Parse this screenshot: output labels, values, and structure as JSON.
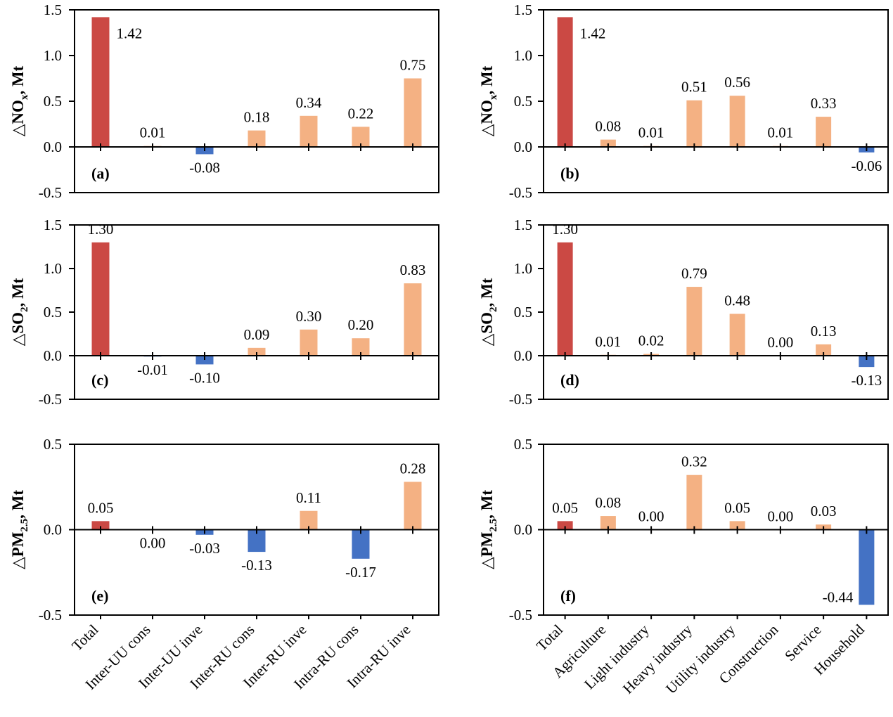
{
  "colors": {
    "total_bar": "#CB4944",
    "positive_bar": "#F4B183",
    "negative_bar": "#4472C4",
    "axis": "#000000",
    "background": "#FFFFFF"
  },
  "chart_data": [
    {
      "type": "bar",
      "panel": "(a)",
      "panel_id": "a",
      "ylabel": "△NOx, Mt",
      "ylabel_rich": [
        {
          "t": "△NO"
        },
        {
          "t": "x",
          "sub": true
        },
        {
          "t": ", Mt"
        }
      ],
      "ylim": [
        -0.5,
        1.5
      ],
      "yticks": [
        1.5,
        1.0,
        0.5,
        0.0,
        -0.5
      ],
      "ytick_labels": [
        "1.5",
        "1.0",
        "0.5",
        "0.0",
        "-0.5"
      ],
      "categories": [
        "Total",
        "Inter-UU cons",
        "Inter-UU inve",
        "Inter-RU cons",
        "Inter-RU inve",
        "Intra-RU cons",
        "Intra-RU inve"
      ],
      "values": [
        1.42,
        0.01,
        -0.08,
        0.18,
        0.34,
        0.22,
        0.75
      ],
      "data_labels": [
        "1.42",
        "0.01",
        "-0.08",
        "0.18",
        "0.34",
        "0.22",
        "0.75"
      ],
      "label_placement": [
        "right",
        "above",
        "below",
        "above",
        "above",
        "above",
        "above"
      ],
      "grid": false,
      "show_category_labels": false
    },
    {
      "type": "bar",
      "panel": "(b)",
      "panel_id": "b",
      "ylabel": "△NOx, Mt",
      "ylabel_rich": [
        {
          "t": "△NO"
        },
        {
          "t": "x",
          "sub": true
        },
        {
          "t": ", Mt"
        }
      ],
      "ylim": [
        -0.5,
        1.5
      ],
      "yticks": [
        1.5,
        1.0,
        0.5,
        0.0,
        -0.5
      ],
      "ytick_labels": [
        "1.5",
        "1.0",
        "0.5",
        "0.0",
        "-0.5"
      ],
      "categories": [
        "Total",
        "Agriculture",
        "Light industry",
        "Heavy industry",
        "Utility industry",
        "Construction",
        "Service",
        "Household"
      ],
      "values": [
        1.42,
        0.08,
        0.01,
        0.51,
        0.56,
        0.01,
        0.33,
        -0.06
      ],
      "data_labels": [
        "1.42",
        "0.08",
        "0.01",
        "0.51",
        "0.56",
        "0.01",
        "0.33",
        "-0.06"
      ],
      "label_placement": [
        "right",
        "above",
        "above",
        "above",
        "above",
        "above",
        "above",
        "below"
      ],
      "grid": false,
      "show_category_labels": false
    },
    {
      "type": "bar",
      "panel": "(c)",
      "panel_id": "c",
      "ylabel": "△SO2, Mt",
      "ylabel_rich": [
        {
          "t": "△SO"
        },
        {
          "t": "2",
          "sub": true
        },
        {
          "t": ", Mt"
        }
      ],
      "ylim": [
        -0.5,
        1.5
      ],
      "yticks": [
        1.5,
        1.0,
        0.5,
        0.0,
        -0.5
      ],
      "ytick_labels": [
        "1.5",
        "1.0",
        "0.5",
        "0.0",
        "-0.5"
      ],
      "categories": [
        "Total",
        "Inter-UU cons",
        "Inter-UU inve",
        "Inter-RU cons",
        "Inter-RU inve",
        "Intra-RU cons",
        "Intra-RU inve"
      ],
      "values": [
        1.3,
        -0.01,
        -0.1,
        0.09,
        0.3,
        0.2,
        0.83
      ],
      "data_labels": [
        "1.30",
        "-0.01",
        "-0.10",
        "0.09",
        "0.30",
        "0.20",
        "0.83"
      ],
      "label_placement": [
        "above",
        "below",
        "below",
        "above",
        "above",
        "above",
        "above"
      ],
      "grid": false,
      "show_category_labels": false
    },
    {
      "type": "bar",
      "panel": "(d)",
      "panel_id": "d",
      "ylabel": "△SO2, Mt",
      "ylabel_rich": [
        {
          "t": "△SO"
        },
        {
          "t": "2",
          "sub": true
        },
        {
          "t": ", Mt"
        }
      ],
      "ylim": [
        -0.5,
        1.5
      ],
      "yticks": [
        1.5,
        1.0,
        0.5,
        0.0,
        -0.5
      ],
      "ytick_labels": [
        "1.5",
        "1.0",
        "0.5",
        "0.0",
        "-0.5"
      ],
      "categories": [
        "Total",
        "Agriculture",
        "Light industry",
        "Heavy industry",
        "Utility industry",
        "Construction",
        "Service",
        "Household"
      ],
      "values": [
        1.3,
        0.01,
        0.02,
        0.79,
        0.48,
        0.0,
        0.13,
        -0.13
      ],
      "data_labels": [
        "1.30",
        "0.01",
        "0.02",
        "0.79",
        "0.48",
        "0.00",
        "0.13",
        "-0.13"
      ],
      "label_placement": [
        "above",
        "above",
        "above",
        "above",
        "above",
        "above",
        "above",
        "below"
      ],
      "grid": false,
      "show_category_labels": false
    },
    {
      "type": "bar",
      "panel": "(e)",
      "panel_id": "e",
      "ylabel": "△PM2.5, Mt",
      "ylabel_rich": [
        {
          "t": "△PM"
        },
        {
          "t": "2.5",
          "sub": true
        },
        {
          "t": ", Mt"
        }
      ],
      "ylim": [
        -0.5,
        0.5
      ],
      "yticks": [
        0.5,
        0.0,
        -0.5
      ],
      "ytick_labels": [
        "0.5",
        "0.0",
        "-0.5"
      ],
      "categories": [
        "Total",
        "Inter-UU cons",
        "Inter-UU inve",
        "Inter-RU cons",
        "Inter-RU inve",
        "Intra-RU cons",
        "Intra-RU inve"
      ],
      "values": [
        0.05,
        0.0,
        -0.03,
        -0.13,
        0.11,
        -0.17,
        0.28
      ],
      "data_labels": [
        "0.05",
        "0.00",
        "-0.03",
        "-0.13",
        "0.11",
        "-0.17",
        "0.28"
      ],
      "label_placement": [
        "above",
        "below",
        "below",
        "below",
        "above",
        "below",
        "above"
      ],
      "grid": false,
      "show_category_labels": true
    },
    {
      "type": "bar",
      "panel": "(f)",
      "panel_id": "f",
      "ylabel": "△PM2.5, Mt",
      "ylabel_rich": [
        {
          "t": "△PM"
        },
        {
          "t": "2.5",
          "sub": true
        },
        {
          "t": ", Mt"
        }
      ],
      "ylim": [
        -0.5,
        0.5
      ],
      "yticks": [
        0.5,
        0.0,
        -0.5
      ],
      "ytick_labels": [
        "0.5",
        "0.0",
        "-0.5"
      ],
      "categories": [
        "Total",
        "Agriculture",
        "Light industry",
        "Heavy industry",
        "Utility industry",
        "Construction",
        "Service",
        "Household"
      ],
      "values": [
        0.05,
        0.08,
        0.0,
        0.32,
        0.05,
        0.0,
        0.03,
        -0.44
      ],
      "data_labels": [
        "0.05",
        "0.08",
        "0.00",
        "0.32",
        "0.05",
        "0.00",
        "0.03",
        "-0.44"
      ],
      "label_placement": [
        "above",
        "above",
        "above",
        "above",
        "above",
        "above",
        "above",
        "left"
      ],
      "grid": false,
      "show_category_labels": true
    }
  ]
}
